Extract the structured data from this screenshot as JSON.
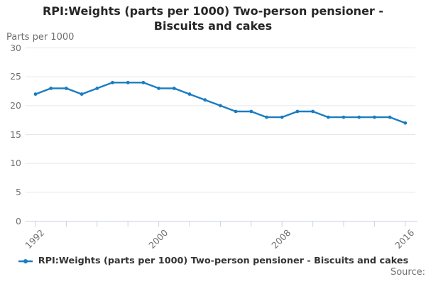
{
  "page": {
    "title": "RPI:Weights (parts per 1000) Two-person pensioner - Biscuits and cakes",
    "unit_label": "Parts per 1000",
    "source_label": "Source:"
  },
  "legend": {
    "label": "RPI:Weights (parts per 1000) Two-person pensioner - Biscuits and cakes"
  },
  "colors": {
    "line": "#1a7cc1",
    "marker": "#1a7cc1",
    "grid": "#e6e6e6",
    "axis": "#c9d4e3",
    "text_muted": "#6f6f6f",
    "text_dark": "#333333"
  },
  "chart_data": {
    "type": "line",
    "title": "RPI:Weights (parts per 1000) Two-person pensioner - Biscuits and cakes",
    "ylabel": "Parts per 1000",
    "series_name": "RPI:Weights (parts per 1000) Two-person pensioner - Biscuits and cakes",
    "x": [
      1992,
      1993,
      1994,
      1995,
      1996,
      1997,
      1998,
      1999,
      2000,
      2001,
      2002,
      2003,
      2004,
      2005,
      2006,
      2007,
      2008,
      2009,
      2010,
      2011,
      2012,
      2013,
      2014,
      2015,
      2016
    ],
    "values": [
      22,
      23,
      23,
      22,
      23,
      24,
      24,
      24,
      23,
      23,
      22,
      21,
      20,
      19,
      19,
      18,
      18,
      19,
      19,
      18,
      18,
      18,
      18,
      18,
      17
    ],
    "ylim": [
      0,
      30
    ],
    "yticks": [
      0,
      5,
      10,
      15,
      20,
      25,
      30
    ],
    "xticks": [
      1992,
      1994,
      1996,
      1998,
      2000,
      2002,
      2004,
      2006,
      2008,
      2010,
      2012,
      2014,
      2016
    ],
    "xtick_labels": [
      "1992",
      "2000",
      "2008",
      "2016"
    ],
    "grid": "horizontal",
    "legend_position": "bottom"
  }
}
